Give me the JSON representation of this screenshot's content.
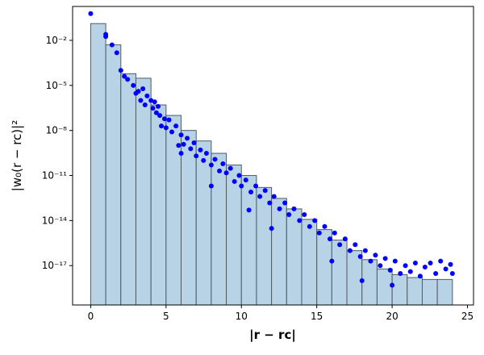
{
  "chart_data": {
    "type": "histogram",
    "xlabel": "|r − rc|",
    "ylabel": "|w₀(r − rc)|²",
    "bins": [
      0,
      1,
      2,
      3,
      4,
      5,
      6,
      7,
      8,
      9,
      10,
      11,
      12,
      13,
      14,
      15,
      16,
      17,
      18,
      19,
      20,
      21,
      22,
      23,
      24
    ],
    "values": [
      0.13,
      0.005,
      6e-05,
      3e-05,
      5e-07,
      1e-07,
      1e-08,
      2e-09,
      3e-10,
      5e-11,
      1e-11,
      1.6e-12,
      3e-13,
      6e-14,
      1.2e-14,
      2.5e-15,
      5e-16,
      1e-16,
      2.5e-17,
      6e-18,
      2.5e-18,
      1.6e-18,
      1.2e-18,
      1.2e-18
    ],
    "color": "#b8d3e6",
    "edgecolor": "#4f5b66",
    "xlim": [
      -1.2,
      25.4
    ],
    "ylim": [
      2.4e-20,
      1.8
    ],
    "log_y": true,
    "xticks": [
      0,
      5,
      10,
      15,
      20,
      25
    ],
    "yticks": [
      {
        "value": 1e-17,
        "label": "10⁻¹⁷"
      },
      {
        "value": 1e-14,
        "label": "10⁻¹⁴"
      },
      {
        "value": 1e-11,
        "label": "10⁻¹¹"
      },
      {
        "value": 1e-08,
        "label": "10⁻⁸"
      },
      {
        "value": 1e-05,
        "label": "10⁻⁵"
      },
      {
        "value": 0.01,
        "label": "10⁻²"
      }
    ],
    "overlay": {
      "type": "scatter",
      "color": "#0000ff",
      "x": [
        0,
        1,
        1,
        1.414,
        1.732,
        2,
        2.236,
        2.449,
        2.828,
        3,
        3.162,
        3.317,
        3.464,
        3.606,
        3.742,
        4,
        4.123,
        4.243,
        4.359,
        4.472,
        4.583,
        4.69,
        4.899,
        5,
        5.196,
        5.385,
        5.657,
        5.831,
        6,
        6.164,
        6.403,
        6.633,
        6.856,
        7,
        7.28,
        7.483,
        7.681,
        8,
        8.246,
        8.544,
        8.775,
        9,
        9.274,
        9.539,
        9.849,
        10,
        10.296,
        10.63,
        10.954,
        11.225,
        11.576,
        11.874,
        12.166,
        12.53,
        12.884,
        13.153,
        13.491,
        13.856,
        14.177,
        14.526,
        14.866,
        15.166,
        15.524,
        15.875,
        16.186,
        16.523,
        16.882,
        17.205,
        17.55,
        17.889,
        18.221,
        18.574,
        18.894,
        19.209,
        19.545,
        19.875,
        20.199,
        20.543,
        20.881,
        21.213,
        21.541,
        21.863,
        22.181,
        22.539,
        22.891,
        23.216,
        23.558,
        23.875,
        24,
        12,
        16,
        18,
        20,
        10.5,
        8,
        6
      ],
      "y": [
        0.6,
        0.025,
        0.018,
        0.005,
        0.0015,
        0.0001,
        4e-05,
        2.5e-05,
        1e-05,
        3e-06,
        4e-06,
        1e-06,
        6e-06,
        5e-07,
        2e-06,
        1e-06,
        3e-07,
        8e-07,
        1.5e-07,
        4e-07,
        1e-07,
        2e-08,
        6e-08,
        1.5e-08,
        5e-08,
        8e-09,
        2e-08,
        1e-09,
        5e-09,
        1.2e-09,
        3e-09,
        6e-10,
        1.5e-09,
        2e-10,
        5e-10,
        1e-10,
        3e-10,
        5e-11,
        1.2e-10,
        2e-11,
        6e-11,
        1.5e-11,
        3e-11,
        4e-12,
        1e-11,
        2e-12,
        5e-12,
        8e-13,
        2e-12,
        4e-13,
        1e-12,
        1.5e-13,
        4e-13,
        6e-14,
        1.5e-13,
        2.5e-14,
        6e-14,
        1e-14,
        2.5e-14,
        4e-15,
        1e-14,
        1.5e-15,
        4e-15,
        6e-16,
        1.5e-15,
        2.5e-16,
        6e-16,
        1e-16,
        2.5e-16,
        4e-17,
        1e-16,
        2e-17,
        5e-17,
        1e-17,
        3e-17,
        5e-18,
        2e-17,
        3e-18,
        1e-17,
        4e-18,
        1.5e-17,
        2e-18,
        8e-18,
        1.5e-17,
        3e-18,
        2e-17,
        6e-18,
        1.2e-17,
        3e-18,
        3e-15,
        2e-17,
        1e-18,
        5e-19,
        5e-14,
        2e-12,
        3e-10
      ]
    }
  }
}
